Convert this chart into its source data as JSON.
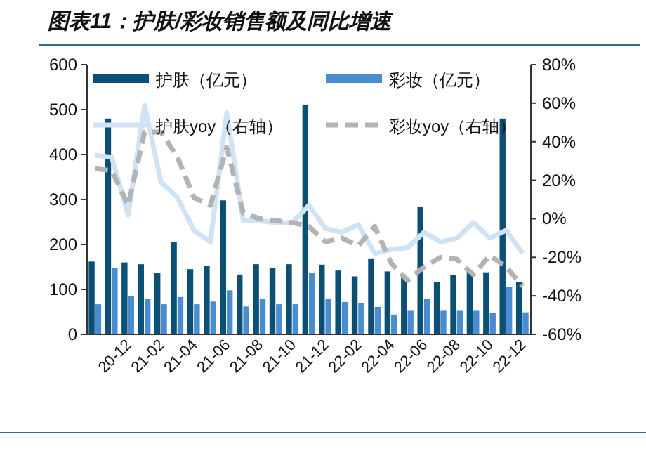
{
  "chart_data": {
    "type": "bar",
    "title": "图表11：护肤/彩妆销售额及同比增速",
    "categories": [
      null,
      null,
      "20-12",
      null,
      "21-02",
      null,
      "21-04",
      null,
      "21-06",
      null,
      "21-08",
      null,
      "21-10",
      null,
      "21-12",
      null,
      "22-02",
      null,
      "22-04",
      null,
      "22-06",
      null,
      "22-08",
      null,
      "22-10",
      null,
      "22-12"
    ],
    "series": [
      {
        "name": "护肤（亿元）",
        "color": "#0c4f74",
        "values": [
          162,
          480,
          160,
          156,
          137,
          206,
          145,
          152,
          298,
          133,
          156,
          148,
          156,
          511,
          155,
          142,
          129,
          169,
          140,
          126,
          283,
          117,
          132,
          143,
          138,
          480,
          117
        ]
      },
      {
        "name": "彩妆（亿元）",
        "color": "#4a8cd0",
        "values": [
          67,
          147,
          85,
          79,
          67,
          83,
          67,
          73,
          98,
          62,
          79,
          67,
          67,
          137,
          79,
          72,
          69,
          61,
          44,
          54,
          79,
          54,
          54,
          54,
          48,
          106,
          49
        ]
      },
      {
        "name": "护肤yoy（右轴）",
        "type": "line",
        "axis": "y2",
        "color": "#cfe3f5",
        "line_style": "solid",
        "values": [
          33,
          32,
          2,
          59,
          19,
          11,
          -6,
          -12,
          55,
          -1,
          -1,
          -2,
          -2,
          7,
          -5,
          -7,
          -3,
          -18,
          -16,
          -15,
          -7,
          -12,
          -10,
          -2,
          -10,
          -6,
          -18
        ]
      },
      {
        "name": "彩妆yoy（右轴）",
        "type": "line",
        "axis": "y2",
        "color": "#b3b3b3",
        "line_style": "dashed",
        "values": [
          26,
          25,
          7,
          45,
          45,
          32,
          11,
          7,
          37,
          3,
          0,
          -1,
          -2,
          -4,
          -12,
          -10,
          -14,
          -4,
          -23,
          -32,
          -25,
          -20,
          -21,
          -29,
          -19,
          -25,
          -35
        ]
      }
    ],
    "ylim": [
      0,
      600
    ],
    "yticks": [
      0,
      100,
      200,
      300,
      400,
      500,
      600
    ],
    "y2lim": [
      -60,
      80
    ],
    "y2ticks": [
      {
        "value": -60,
        "label": "-60%"
      },
      {
        "value": -40,
        "label": "-40%"
      },
      {
        "value": -20,
        "label": "-20%"
      },
      {
        "value": 0,
        "label": "0%"
      },
      {
        "value": 20,
        "label": "20%"
      },
      {
        "value": 40,
        "label": "40%"
      },
      {
        "value": 60,
        "label": "60%"
      },
      {
        "value": 80,
        "label": "80%"
      }
    ],
    "legend": "top",
    "grid": false
  }
}
